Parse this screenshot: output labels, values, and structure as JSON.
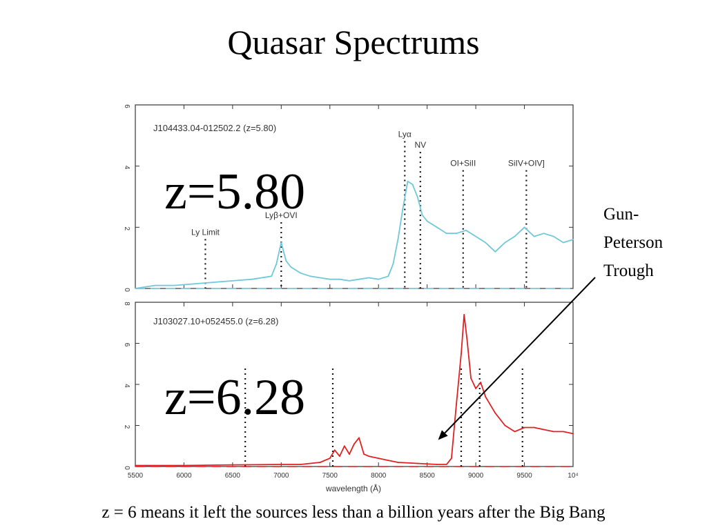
{
  "title": "Quasar Spectrums",
  "caption": "z = 6  means it left the sources less than a billion years after the Big Bang",
  "callout": {
    "lines": [
      "Gun-",
      "Peterson",
      "Trough"
    ]
  },
  "colors": {
    "top_series": "#6ec8d8",
    "bottom_series": "#e02020",
    "arrow": "#000000"
  },
  "chart_data": [
    {
      "type": "line",
      "name": "J104433.04-012502.2 (z=5.80)",
      "overlay_label": "z=5.80",
      "xlim": [
        5500,
        10000
      ],
      "ylim": [
        0,
        6
      ],
      "x_ticks": [
        5500,
        6000,
        6500,
        7000,
        7500,
        8000,
        8500,
        9000,
        9500,
        10000
      ],
      "y_ticks": [
        "0",
        "2",
        "4",
        "6"
      ],
      "y_tick_values": [
        0,
        2,
        4,
        6
      ],
      "grid": false,
      "line_markers": [
        {
          "label": "Ly Limit",
          "x": 6220,
          "label_y": 1.75
        },
        {
          "label": "Lyβ+OVI",
          "x": 7000,
          "label_y": 2.3
        },
        {
          "label": "Lyα",
          "x": 8270,
          "label_y": 4.95
        },
        {
          "label": "NV",
          "x": 8430,
          "label_y": 4.6
        },
        {
          "label": "OI+SiII",
          "x": 8870,
          "label_y": 4.0
        },
        {
          "label": "SiIV+OIV]",
          "x": 9520,
          "label_y": 4.0
        }
      ],
      "series": [
        {
          "x": [
            5500,
            5700,
            5900,
            6100,
            6300,
            6500,
            6700,
            6900,
            6950,
            7000,
            7050,
            7100,
            7200,
            7300,
            7400,
            7500,
            7600,
            7700,
            7800,
            7900,
            8000,
            8100,
            8150,
            8200,
            8250,
            8300,
            8350,
            8400,
            8450,
            8500,
            8600,
            8700,
            8800,
            8900,
            9000,
            9100,
            9200,
            9300,
            9400,
            9500,
            9600,
            9700,
            9800,
            9900,
            10000
          ],
          "y": [
            0.0,
            0.1,
            0.1,
            0.15,
            0.2,
            0.25,
            0.3,
            0.4,
            0.8,
            1.5,
            0.9,
            0.7,
            0.5,
            0.4,
            0.35,
            0.3,
            0.3,
            0.25,
            0.3,
            0.35,
            0.3,
            0.4,
            0.8,
            1.6,
            2.6,
            3.5,
            3.4,
            3.0,
            2.4,
            2.2,
            2.0,
            1.8,
            1.8,
            1.9,
            1.7,
            1.5,
            1.2,
            1.5,
            1.7,
            2.0,
            1.7,
            1.8,
            1.7,
            1.5,
            1.6
          ]
        }
      ]
    },
    {
      "type": "line",
      "name": "J103027.10+052455.0 (z=6.28)",
      "overlay_label": "z=6.28",
      "xlabel": "wavelength (Å)",
      "xlim": [
        5500,
        10000
      ],
      "ylim": [
        0,
        8
      ],
      "x_ticks": [
        5500,
        6000,
        6500,
        7000,
        7500,
        8000,
        8500,
        9000,
        9500,
        10000
      ],
      "x_tick_labels": [
        "5500",
        "6000",
        "6500",
        "7000",
        "7500",
        "8000",
        "8500",
        "9000",
        "9500",
        "10⁴"
      ],
      "y_ticks": [
        "0",
        "2",
        "4",
        "6",
        "8"
      ],
      "y_tick_values": [
        0,
        2,
        4,
        6,
        8
      ],
      "grid": false,
      "line_markers": [
        {
          "x": 6630
        },
        {
          "x": 7530
        },
        {
          "x": 8850
        },
        {
          "x": 9040
        },
        {
          "x": 9480
        }
      ],
      "series": [
        {
          "x": [
            5500,
            6000,
            6500,
            7000,
            7200,
            7400,
            7500,
            7550,
            7600,
            7650,
            7700,
            7750,
            7800,
            7850,
            7900,
            8000,
            8100,
            8200,
            8400,
            8600,
            8700,
            8750,
            8800,
            8850,
            8880,
            8910,
            8950,
            9000,
            9050,
            9100,
            9200,
            9300,
            9400,
            9500,
            9600,
            9700,
            9800,
            9900,
            10000
          ],
          "y": [
            0.05,
            0.05,
            0.08,
            0.1,
            0.1,
            0.2,
            0.4,
            0.8,
            0.5,
            1.0,
            0.6,
            1.1,
            1.4,
            0.6,
            0.5,
            0.4,
            0.3,
            0.2,
            0.15,
            0.1,
            0.1,
            0.4,
            3.0,
            5.5,
            7.4,
            6.2,
            4.3,
            3.8,
            4.1,
            3.4,
            2.6,
            2.0,
            1.7,
            1.9,
            1.9,
            1.8,
            1.7,
            1.7,
            1.6
          ]
        }
      ]
    }
  ]
}
